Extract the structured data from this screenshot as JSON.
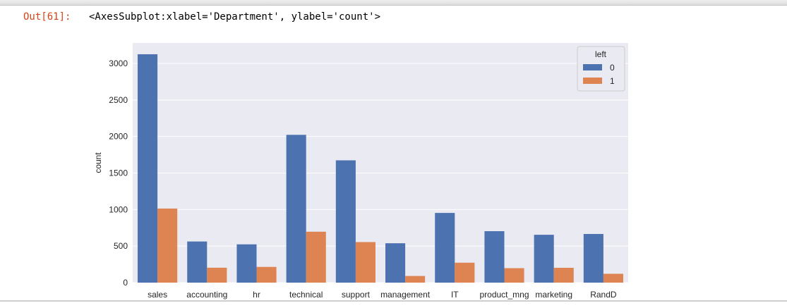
{
  "output": {
    "prompt": "Out[61]:",
    "text": "<AxesSubplot:xlabel='Department', ylabel='count'>"
  },
  "chart_data": {
    "type": "bar",
    "categories": [
      "sales",
      "accounting",
      "hr",
      "technical",
      "support",
      "management",
      "IT",
      "product_mng",
      "marketing",
      "RandD"
    ],
    "series": [
      {
        "name": "0",
        "color": "#4c72b0",
        "values": [
          3126,
          563,
          524,
          2023,
          1674,
          539,
          954,
          704,
          655,
          666
        ]
      },
      {
        "name": "1",
        "color": "#dd8452",
        "values": [
          1014,
          204,
          215,
          697,
          555,
          91,
          273,
          198,
          203,
          121
        ]
      }
    ],
    "xlabel": "",
    "ylabel": "count",
    "ylim": [
      0,
      3280
    ],
    "yticks": [
      0,
      500,
      1000,
      1500,
      2000,
      2500,
      3000
    ],
    "legend": {
      "title": "left",
      "position": "upper right"
    },
    "grid": true,
    "background": "#eaeaf2"
  }
}
